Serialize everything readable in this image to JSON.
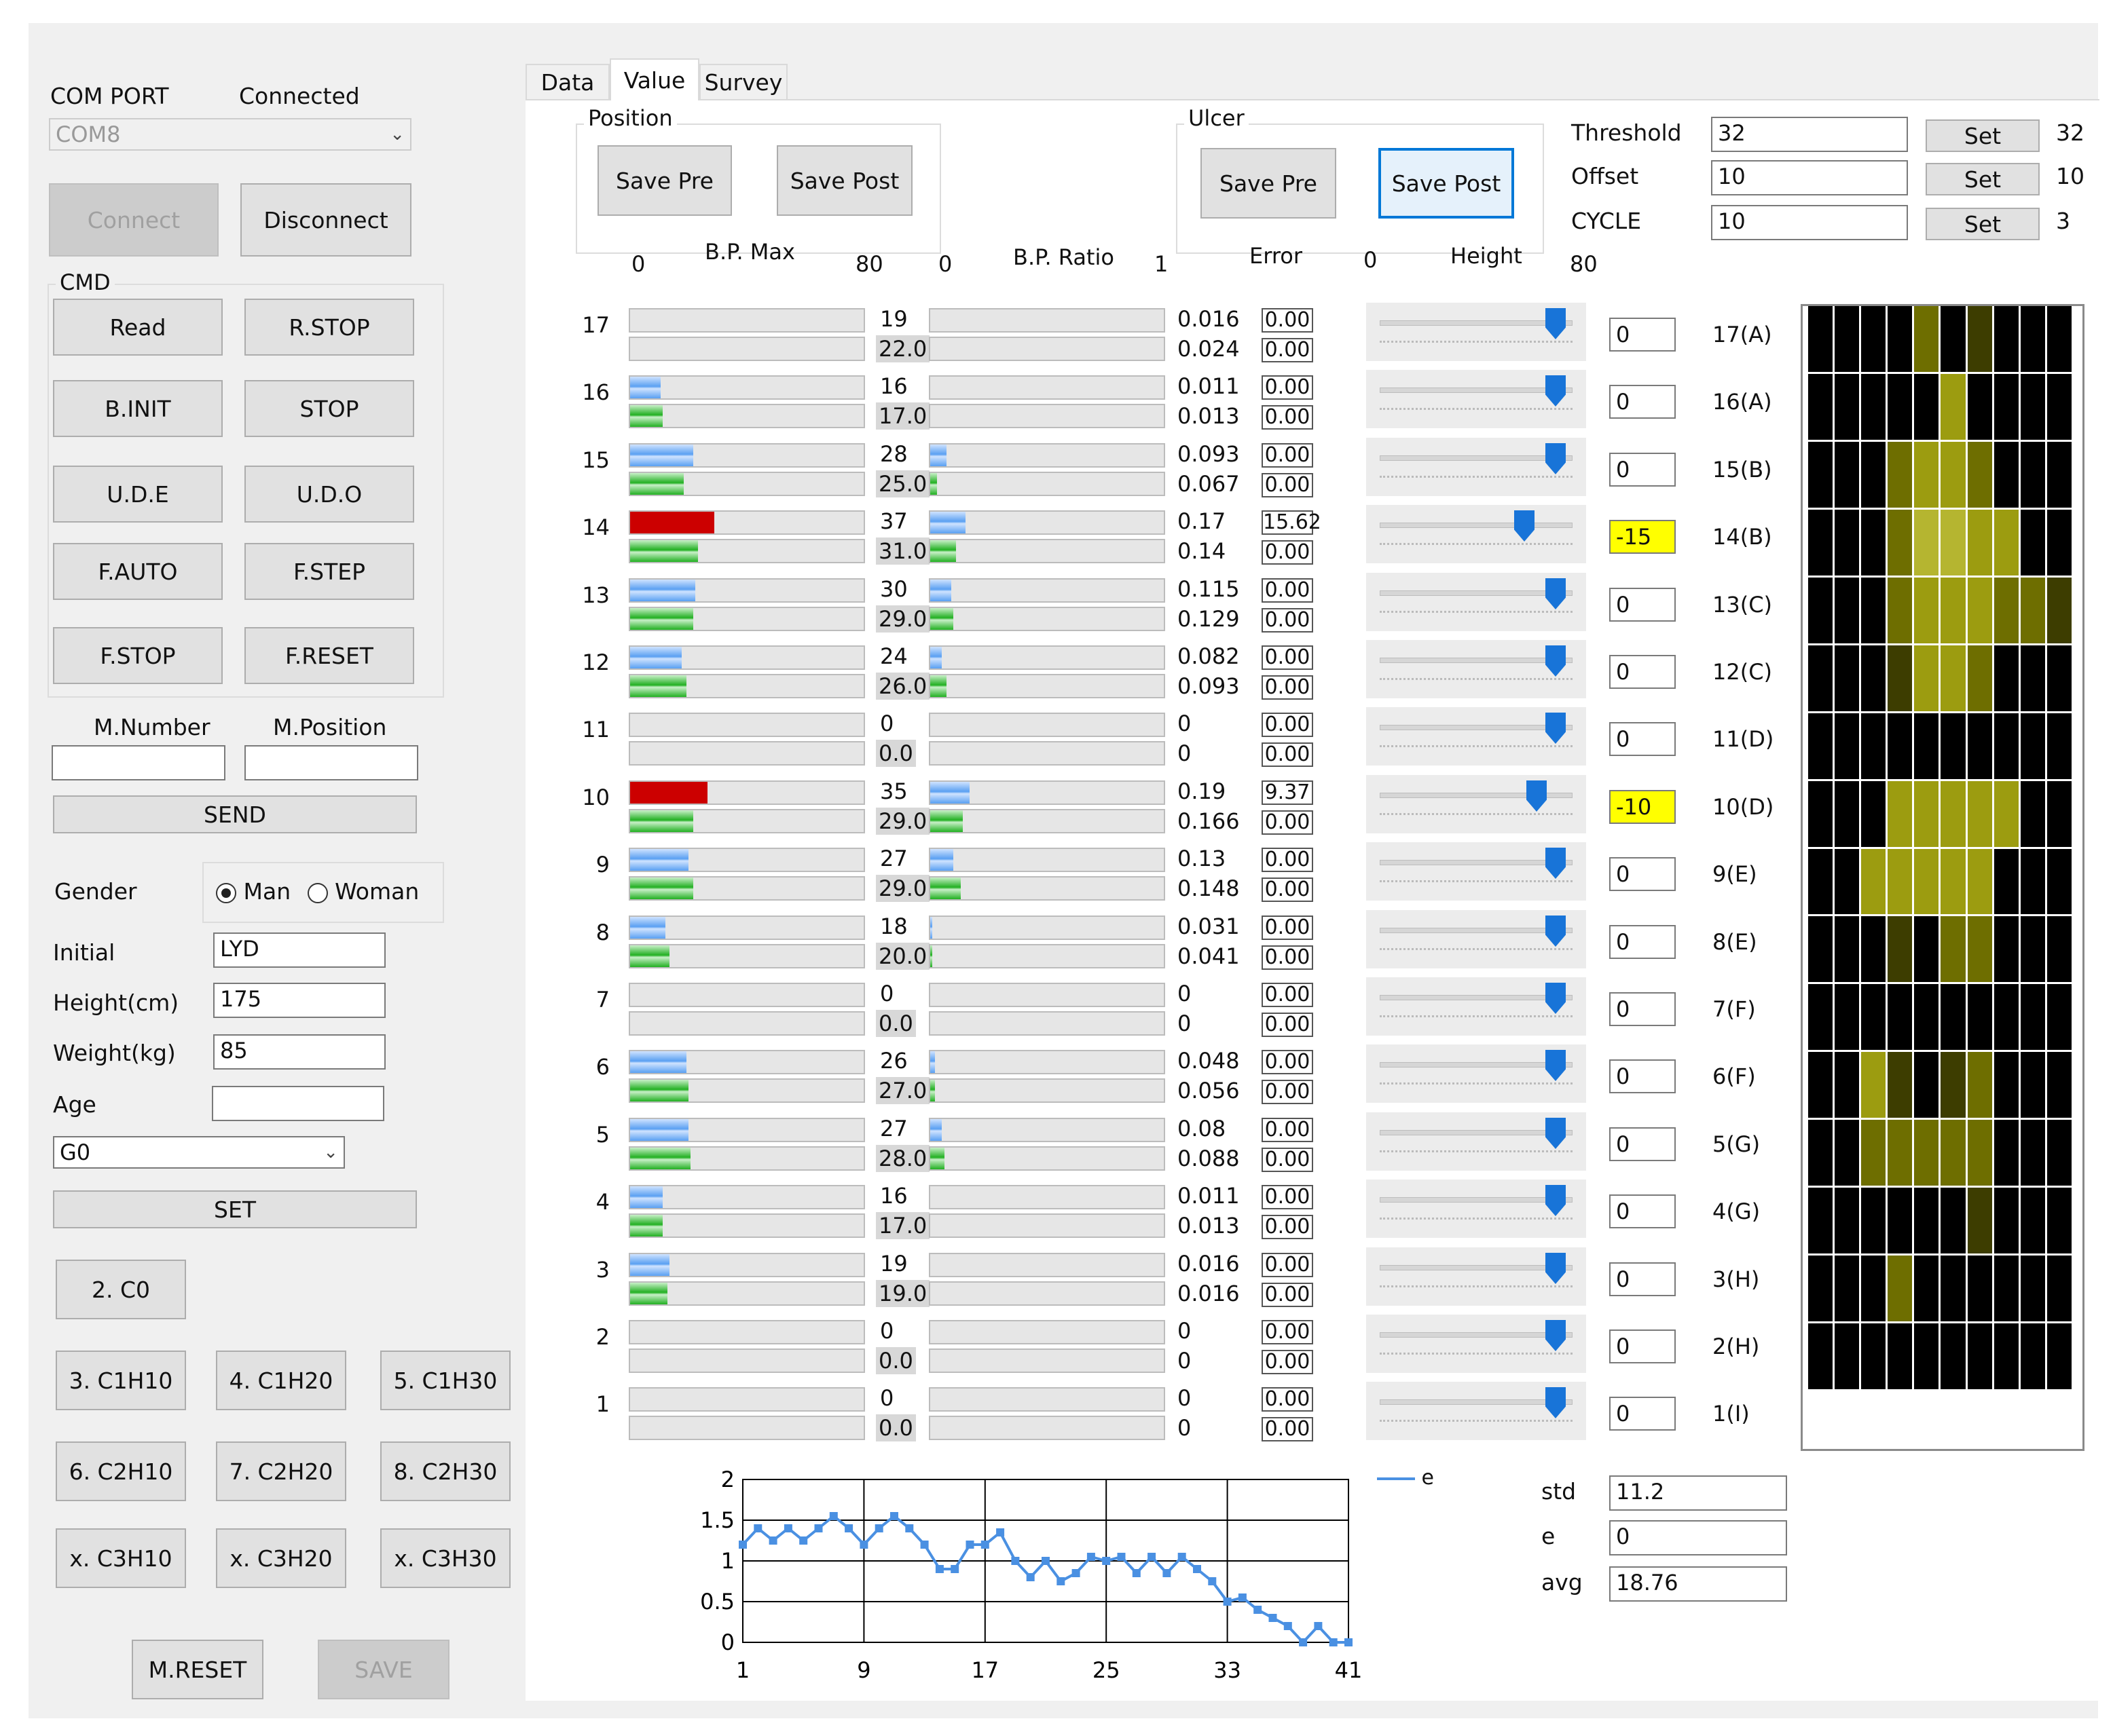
{
  "left": {
    "com_port_label": "COM PORT",
    "status": "Connected",
    "com_value": "COM8",
    "connect": "Connect",
    "disconnect": "Disconnect",
    "cmd_title": "CMD",
    "cmd_buttons": [
      "Read",
      "R.STOP",
      "B.INIT",
      "STOP",
      "U.D.E",
      "U.D.O",
      "F.AUTO",
      "F.STEP",
      "F.STOP",
      "F.RESET"
    ],
    "m_number_label": "M.Number",
    "m_position_label": "M.Position",
    "m_number": "",
    "m_position": "",
    "send": "SEND",
    "gender_label": "Gender",
    "gender_man": "Man",
    "gender_woman": "Woman",
    "initial_label": "Initial",
    "initial": "LYD",
    "height_label": "Height(cm)",
    "height": "175",
    "weight_label": "Weight(kg)",
    "weight": "85",
    "age_label": "Age",
    "age": "",
    "group_value": "G0",
    "set": "SET",
    "preset_buttons": [
      "2. C0",
      "3. C1H10",
      "4. C1H20",
      "5. C1H30",
      "6. C2H10",
      "7. C2H20",
      "8. C2H30",
      "x. C3H10",
      "x. C3H20",
      "x. C3H30"
    ],
    "m_reset": "M.RESET",
    "save": "SAVE"
  },
  "tabs": [
    "Data",
    "Value",
    "Survey"
  ],
  "selected_tab": "Value",
  "position": {
    "title": "Position",
    "save_pre": "Save Pre",
    "save_post": "Save Post"
  },
  "ulcer": {
    "title": "Ulcer",
    "save_pre": "Save Pre",
    "save_post": "Save Post"
  },
  "settings": [
    {
      "label": "Threshold",
      "value": "32",
      "button": "Set",
      "current": "32"
    },
    {
      "label": "Offset",
      "value": "10",
      "button": "Set",
      "current": "10"
    },
    {
      "label": "CYCLE",
      "value": "10",
      "button": "Set",
      "current": "3"
    }
  ],
  "headers": {
    "bp_max": "B.P. Max",
    "bp_max_min": "0",
    "bp_max_max": "80",
    "bp_ratio": "B.P. Ratio",
    "bp_ratio_min": "0",
    "bp_ratio_max": "1",
    "error": "Error",
    "height": "Height",
    "height_min": "0",
    "height_max": "80"
  },
  "rows": [
    {
      "n": "17",
      "max": "19",
      "post": "22.0",
      "max_pct": 0,
      "post_pct": 0,
      "red": false,
      "r1": "0.016",
      "r2": "0.024",
      "r1_pct": 0,
      "r2_pct": 0,
      "e1": "0.00",
      "e2": "0.00",
      "h": "0",
      "h_warn": false,
      "h_frac": 0.96,
      "label": "17(A)"
    },
    {
      "n": "16",
      "max": "16",
      "post": "17.0",
      "max_pct": 0.13,
      "post_pct": 0.14,
      "red": false,
      "r1": "0.011",
      "r2": "0.013",
      "r1_pct": 0,
      "r2_pct": 0,
      "e1": "0.00",
      "e2": "0.00",
      "h": "0",
      "h_warn": false,
      "h_frac": 0.96,
      "label": "16(A)"
    },
    {
      "n": "15",
      "max": "28",
      "post": "25.0",
      "max_pct": 0.27,
      "post_pct": 0.23,
      "red": false,
      "r1": "0.093",
      "r2": "0.067",
      "r1_pct": 0.07,
      "r2_pct": 0.03,
      "e1": "0.00",
      "e2": "0.00",
      "h": "0",
      "h_warn": false,
      "h_frac": 0.96,
      "label": "15(B)"
    },
    {
      "n": "14",
      "max": "37",
      "post": "31.0",
      "max_pct": 0.36,
      "post_pct": 0.29,
      "red": true,
      "r1": "0.17",
      "r2": "0.14",
      "r1_pct": 0.15,
      "r2_pct": 0.11,
      "e1": "15.62",
      "e2": "0.00",
      "h": "-15",
      "h_warn": true,
      "h_frac": 0.78,
      "label": "14(B)"
    },
    {
      "n": "13",
      "max": "30",
      "post": "29.0",
      "max_pct": 0.28,
      "post_pct": 0.27,
      "red": false,
      "r1": "0.115",
      "r2": "0.129",
      "r1_pct": 0.09,
      "r2_pct": 0.1,
      "e1": "0.00",
      "e2": "0.00",
      "h": "0",
      "h_warn": false,
      "h_frac": 0.96,
      "label": "13(C)"
    },
    {
      "n": "12",
      "max": "24",
      "post": "26.0",
      "max_pct": 0.22,
      "post_pct": 0.24,
      "red": false,
      "r1": "0.082",
      "r2": "0.093",
      "r1_pct": 0.05,
      "r2_pct": 0.07,
      "e1": "0.00",
      "e2": "0.00",
      "h": "0",
      "h_warn": false,
      "h_frac": 0.96,
      "label": "12(C)"
    },
    {
      "n": "11",
      "max": "0",
      "post": "0.0",
      "max_pct": 0,
      "post_pct": 0,
      "red": false,
      "r1": "0",
      "r2": "0",
      "r1_pct": 0,
      "r2_pct": 0,
      "e1": "0.00",
      "e2": "0.00",
      "h": "0",
      "h_warn": false,
      "h_frac": 0.96,
      "label": "11(D)"
    },
    {
      "n": "10",
      "max": "35",
      "post": "29.0",
      "max_pct": 0.33,
      "post_pct": 0.27,
      "red": true,
      "r1": "0.19",
      "r2": "0.166",
      "r1_pct": 0.17,
      "r2_pct": 0.14,
      "e1": "9.37",
      "e2": "0.00",
      "h": "-10",
      "h_warn": true,
      "h_frac": 0.85,
      "label": "10(D)"
    },
    {
      "n": "9",
      "max": "27",
      "post": "29.0",
      "max_pct": 0.25,
      "post_pct": 0.27,
      "red": false,
      "r1": "0.13",
      "r2": "0.148",
      "r1_pct": 0.1,
      "r2_pct": 0.13,
      "e1": "0.00",
      "e2": "0.00",
      "h": "0",
      "h_warn": false,
      "h_frac": 0.96,
      "label": "9(E)"
    },
    {
      "n": "8",
      "max": "18",
      "post": "20.0",
      "max_pct": 0.15,
      "post_pct": 0.17,
      "red": false,
      "r1": "0.031",
      "r2": "0.041",
      "r1_pct": 0.01,
      "r2_pct": 0.01,
      "e1": "0.00",
      "e2": "0.00",
      "h": "0",
      "h_warn": false,
      "h_frac": 0.96,
      "label": "8(E)"
    },
    {
      "n": "7",
      "max": "0",
      "post": "0.0",
      "max_pct": 0,
      "post_pct": 0,
      "red": false,
      "r1": "0",
      "r2": "0",
      "r1_pct": 0,
      "r2_pct": 0,
      "e1": "0.00",
      "e2": "0.00",
      "h": "0",
      "h_warn": false,
      "h_frac": 0.96,
      "label": "7(F)"
    },
    {
      "n": "6",
      "max": "26",
      "post": "27.0",
      "max_pct": 0.24,
      "post_pct": 0.25,
      "red": false,
      "r1": "0.048",
      "r2": "0.056",
      "r1_pct": 0.02,
      "r2_pct": 0.02,
      "e1": "0.00",
      "e2": "0.00",
      "h": "0",
      "h_warn": false,
      "h_frac": 0.96,
      "label": "6(F)"
    },
    {
      "n": "5",
      "max": "27",
      "post": "28.0",
      "max_pct": 0.25,
      "post_pct": 0.26,
      "red": false,
      "r1": "0.08",
      "r2": "0.088",
      "r1_pct": 0.05,
      "r2_pct": 0.06,
      "e1": "0.00",
      "e2": "0.00",
      "h": "0",
      "h_warn": false,
      "h_frac": 0.96,
      "label": "5(G)"
    },
    {
      "n": "4",
      "max": "16",
      "post": "17.0",
      "max_pct": 0.14,
      "post_pct": 0.14,
      "red": false,
      "r1": "0.011",
      "r2": "0.013",
      "r1_pct": 0,
      "r2_pct": 0,
      "e1": "0.00",
      "e2": "0.00",
      "h": "0",
      "h_warn": false,
      "h_frac": 0.96,
      "label": "4(G)"
    },
    {
      "n": "3",
      "max": "19",
      "post": "19.0",
      "max_pct": 0.17,
      "post_pct": 0.16,
      "red": false,
      "r1": "0.016",
      "r2": "0.016",
      "r1_pct": 0,
      "r2_pct": 0,
      "e1": "0.00",
      "e2": "0.00",
      "h": "0",
      "h_warn": false,
      "h_frac": 0.96,
      "label": "3(H)"
    },
    {
      "n": "2",
      "max": "0",
      "post": "0.0",
      "max_pct": 0,
      "post_pct": 0,
      "red": false,
      "r1": "0",
      "r2": "0",
      "r1_pct": 0,
      "r2_pct": 0,
      "e1": "0.00",
      "e2": "0.00",
      "h": "0",
      "h_warn": false,
      "h_frac": 0.96,
      "label": "2(H)"
    },
    {
      "n": "1",
      "max": "0",
      "post": "0.0",
      "max_pct": 0,
      "post_pct": 0,
      "red": false,
      "r1": "0",
      "r2": "0",
      "r1_pct": 0,
      "r2_pct": 0,
      "e1": "0.00",
      "e2": "0.00",
      "h": "0",
      "h_warn": false,
      "h_frac": 0.96,
      "label": "1(I)"
    }
  ],
  "heatmap": {
    "colors": {
      "0": "#000000",
      "1": "#3d3d00",
      "2": "#6e6e00",
      "3": "#9c9c10",
      "4": "#b5b530"
    },
    "grid": [
      [
        0,
        0,
        0,
        0,
        2,
        0,
        1,
        0,
        0,
        0
      ],
      [
        0,
        0,
        0,
        0,
        0,
        3,
        0,
        0,
        0,
        0
      ],
      [
        0,
        0,
        0,
        2,
        3,
        3,
        2,
        0,
        0,
        0
      ],
      [
        0,
        0,
        0,
        2,
        4,
        4,
        3,
        3,
        0,
        0
      ],
      [
        0,
        0,
        0,
        2,
        3,
        3,
        3,
        2,
        2,
        1
      ],
      [
        0,
        0,
        0,
        1,
        3,
        3,
        2,
        0,
        0,
        0
      ],
      [
        0,
        0,
        0,
        0,
        0,
        0,
        0,
        0,
        0,
        0
      ],
      [
        0,
        0,
        0,
        3,
        3,
        3,
        3,
        3,
        0,
        0
      ],
      [
        0,
        0,
        3,
        3,
        3,
        3,
        3,
        0,
        0,
        0
      ],
      [
        0,
        0,
        0,
        1,
        0,
        2,
        2,
        0,
        0,
        0
      ],
      [
        0,
        0,
        0,
        0,
        0,
        0,
        0,
        0,
        0,
        0
      ],
      [
        0,
        0,
        3,
        1,
        0,
        1,
        2,
        0,
        0,
        0
      ],
      [
        0,
        0,
        2,
        2,
        2,
        2,
        2,
        0,
        0,
        0
      ],
      [
        0,
        0,
        0,
        0,
        0,
        0,
        1,
        0,
        0,
        0
      ],
      [
        0,
        0,
        0,
        2,
        0,
        0,
        0,
        0,
        0,
        0
      ],
      [
        0,
        0,
        0,
        0,
        0,
        0,
        0,
        0,
        0,
        0
      ]
    ]
  },
  "chart_data": {
    "type": "line",
    "legend": [
      "e"
    ],
    "x_ticks": [
      "1",
      "9",
      "17",
      "25",
      "33",
      "41"
    ],
    "y_ticks": [
      "0",
      "0.5",
      "1",
      "1.5",
      "2"
    ],
    "xlim": [
      1,
      41
    ],
    "ylim": [
      0,
      2
    ],
    "series": [
      {
        "name": "e",
        "color": "#4a90e2",
        "values": [
          1.2,
          1.4,
          1.25,
          1.4,
          1.25,
          1.4,
          1.55,
          1.4,
          1.2,
          1.4,
          1.55,
          1.4,
          1.2,
          0.9,
          0.9,
          1.2,
          1.2,
          1.35,
          1.0,
          0.8,
          1.0,
          0.75,
          0.85,
          1.05,
          1.0,
          1.05,
          0.85,
          1.05,
          0.85,
          1.05,
          0.9,
          0.75,
          0.5,
          0.55,
          0.4,
          0.3,
          0.2,
          0.0,
          0.2,
          0.0,
          0.0
        ]
      }
    ]
  },
  "stats": [
    {
      "label": "std",
      "value": "11.2"
    },
    {
      "label": "e",
      "value": "0"
    },
    {
      "label": "avg",
      "value": "18.76"
    }
  ]
}
